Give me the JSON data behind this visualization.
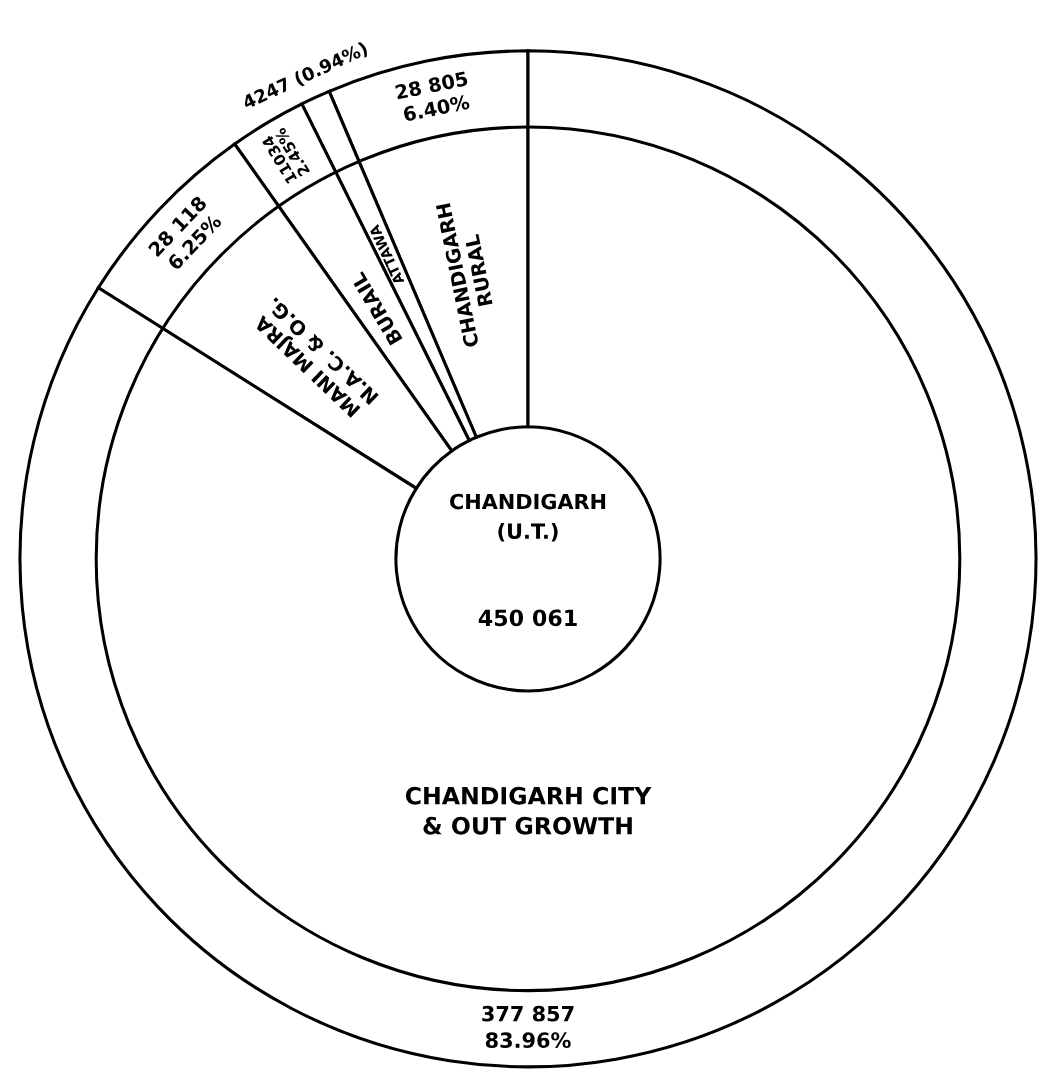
{
  "chart_data": {
    "type": "donut",
    "title": "CHANDIGARH\n(U.T.)",
    "annotations": [
      "450 061"
    ],
    "categories": [
      "CHANDIGARH\nRURAL",
      "ATTAWA",
      "BURAIL",
      "MANI MAJRA\nN.A.C. & O.G.",
      "CHANDIGARH CITY\n& OUT GROWTH"
    ],
    "values": [
      28805,
      4247,
      11034,
      28118,
      377857
    ],
    "value_labels": [
      "28 805\n6.40%",
      "4247 (0.94%)",
      "11034\n2.45%",
      "28 118\n6.25%",
      "377 857\n83.96%"
    ],
    "colors": [
      "#ffffff",
      "#ffffff",
      "#ffffff",
      "#ffffff",
      "#ffffff"
    ]
  }
}
